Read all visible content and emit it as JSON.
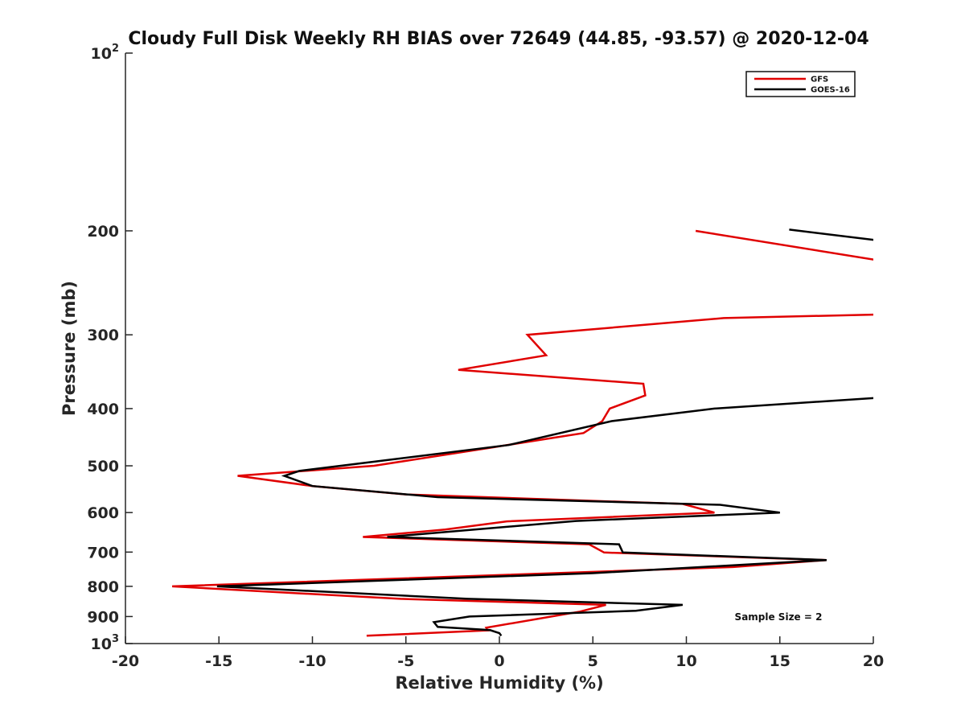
{
  "chart_data": {
    "type": "line",
    "title": "Cloudy Full Disk Weekly RH BIAS over 72649 (44.85, -93.57) @ 2020-12-04",
    "xlabel": "Relative Humidity (%)",
    "ylabel": "Pressure (mb)",
    "xlim": [
      -20,
      20
    ],
    "ylim": [
      100,
      1000
    ],
    "yscale": "log",
    "y_reversed": true,
    "x_ticks": [
      "-20",
      "-15",
      "-10",
      "-5",
      "0",
      "5",
      "10",
      "15",
      "20"
    ],
    "y_ticks": [
      {
        "base": "10",
        "exp": "2"
      },
      {
        "base": "200",
        "exp": ""
      },
      {
        "base": "300",
        "exp": ""
      },
      {
        "base": "400",
        "exp": ""
      },
      {
        "base": "500",
        "exp": ""
      },
      {
        "base": "600",
        "exp": ""
      },
      {
        "base": "700",
        "exp": ""
      },
      {
        "base": "800",
        "exp": ""
      },
      {
        "base": "900",
        "exp": ""
      },
      {
        "base": "10",
        "exp": "3"
      }
    ],
    "grid": false,
    "legend_position": "top-right",
    "annotation": "Sample Size = 2",
    "series": [
      {
        "name": "GFS",
        "color": "#e00000",
        "segments": [
          [
            [
              10.5,
              200
            ],
            [
              20.5,
              225
            ]
          ],
          [
            [
              20.5,
              277
            ],
            [
              12.0,
              281
            ],
            [
              1.5,
              300
            ],
            [
              2.5,
              325
            ],
            [
              -2.2,
              344
            ],
            [
              7.7,
              363
            ],
            [
              7.8,
              380
            ],
            [
              5.9,
              400
            ],
            [
              5.5,
              420
            ],
            [
              4.5,
              440
            ],
            [
              -0.5,
              466
            ],
            [
              -6.7,
              500
            ],
            [
              -14.0,
              520
            ],
            [
              -10.0,
              541
            ],
            [
              -5.0,
              559
            ],
            [
              9.8,
              580
            ],
            [
              11.5,
              600
            ],
            [
              0.4,
              621
            ],
            [
              -2.9,
              641
            ],
            [
              -7.3,
              660
            ],
            [
              4.8,
              679
            ],
            [
              5.6,
              701
            ],
            [
              17.5,
              722
            ],
            [
              12.5,
              742
            ],
            [
              -17.5,
              800
            ],
            [
              -5.3,
              840
            ],
            [
              5.7,
              860
            ],
            [
              4.3,
              883
            ],
            [
              -0.7,
              940
            ],
            [
              -0.6,
              950
            ],
            [
              -7.1,
              970
            ]
          ]
        ]
      },
      {
        "name": "GOES-16",
        "color": "#000000",
        "segments": [
          [
            [
              15.5,
              199
            ],
            [
              20.5,
              208
            ]
          ],
          [
            [
              20.5,
              383
            ],
            [
              11.5,
              400
            ],
            [
              6.0,
              420
            ],
            [
              0.5,
              461
            ],
            [
              -10.7,
              510
            ],
            [
              -11.5,
              520
            ],
            [
              -10.0,
              541
            ],
            [
              -3.3,
              565
            ],
            [
              11.8,
              582
            ],
            [
              15.0,
              600
            ],
            [
              4.1,
              620
            ],
            [
              -6.0,
              660
            ],
            [
              6.4,
              679
            ],
            [
              6.6,
              701
            ],
            [
              17.5,
              722
            ],
            [
              5.0,
              760
            ],
            [
              -15.1,
              800
            ],
            [
              -1.7,
              840
            ],
            [
              9.8,
              860
            ],
            [
              7.3,
              880
            ],
            [
              -1.6,
              900
            ],
            [
              -3.5,
              920
            ],
            [
              -3.3,
              937
            ],
            [
              -0.5,
              949
            ],
            [
              0.0,
              960
            ],
            [
              0.1,
              970
            ]
          ]
        ]
      }
    ]
  }
}
